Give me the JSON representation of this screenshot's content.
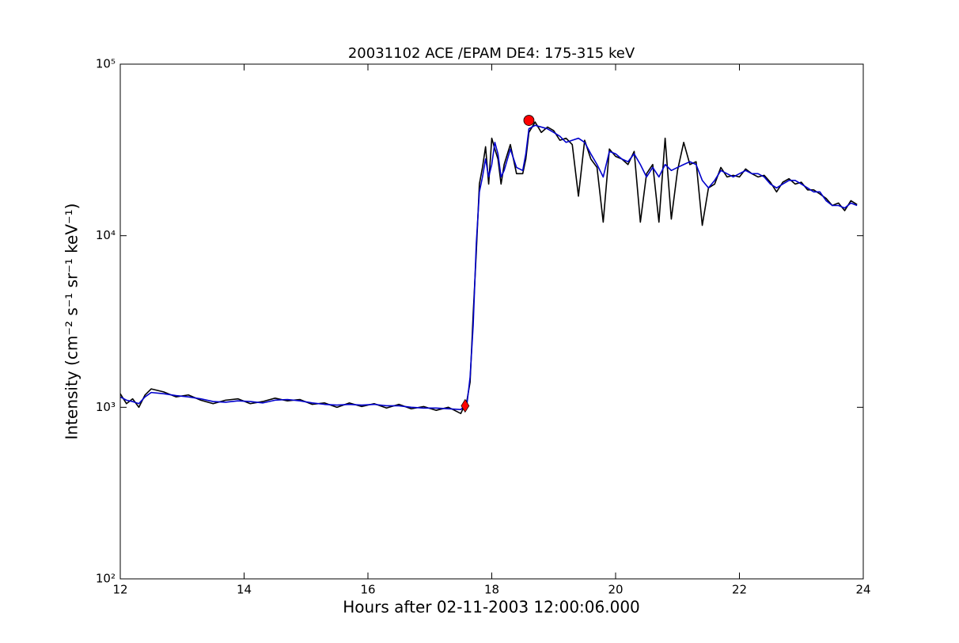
{
  "chart_data": {
    "type": "line",
    "title": "20031102 ACE /EPAM DE4: 175-315 keV",
    "xlabel": "Hours after 02-11-2003 12:00:06.000",
    "ylabel": "Intensity (cm⁻² s⁻¹ sr⁻¹ keV⁻¹)",
    "log_y": true,
    "xlim": [
      12,
      24
    ],
    "xticks": [
      12,
      14,
      16,
      18,
      20,
      22,
      24
    ],
    "ylim": [
      100,
      100000
    ],
    "yticks": [
      {
        "value": 100,
        "label": "10²"
      },
      {
        "value": 1000,
        "label": "10³"
      },
      {
        "value": 10000,
        "label": "10⁴"
      },
      {
        "value": 100000,
        "label": "10⁵"
      }
    ],
    "x": [
      12.0,
      12.1,
      12.2,
      12.3,
      12.4,
      12.5,
      12.7,
      12.9,
      13.1,
      13.3,
      13.5,
      13.7,
      13.9,
      14.1,
      14.3,
      14.5,
      14.7,
      14.9,
      15.1,
      15.3,
      15.5,
      15.7,
      15.9,
      16.1,
      16.3,
      16.5,
      16.7,
      16.9,
      17.1,
      17.3,
      17.5,
      17.6,
      17.65,
      17.7,
      17.75,
      17.8,
      17.85,
      17.9,
      17.95,
      18.0,
      18.05,
      18.1,
      18.15,
      18.2,
      18.3,
      18.4,
      18.5,
      18.55,
      18.6,
      18.7,
      18.8,
      18.9,
      19.0,
      19.1,
      19.2,
      19.3,
      19.4,
      19.5,
      19.6,
      19.7,
      19.8,
      19.9,
      20.0,
      20.1,
      20.2,
      20.3,
      20.4,
      20.5,
      20.6,
      20.7,
      20.8,
      20.9,
      21.0,
      21.1,
      21.2,
      21.3,
      21.4,
      21.5,
      21.6,
      21.7,
      21.8,
      21.9,
      22.0,
      22.1,
      22.2,
      22.3,
      22.4,
      22.5,
      22.6,
      22.7,
      22.8,
      22.9,
      23.0,
      23.1,
      23.2,
      23.3,
      23.4,
      23.5,
      23.6,
      23.7,
      23.8,
      23.9
    ],
    "series": [
      {
        "color": "#000000",
        "values": [
          1200,
          1050,
          1120,
          1000,
          1180,
          1280,
          1230,
          1150,
          1180,
          1100,
          1050,
          1100,
          1120,
          1050,
          1080,
          1130,
          1090,
          1110,
          1040,
          1060,
          1000,
          1060,
          1010,
          1050,
          990,
          1040,
          980,
          1010,
          960,
          1000,
          920,
          1100,
          1400,
          3500,
          8000,
          20000,
          25000,
          33000,
          20000,
          37000,
          32000,
          28000,
          20000,
          26000,
          34000,
          23000,
          23000,
          28000,
          40000,
          46000,
          40000,
          43000,
          41000,
          36000,
          37000,
          34000,
          17000,
          36000,
          28000,
          25000,
          12000,
          32000,
          29000,
          28000,
          26000,
          31000,
          12000,
          23000,
          26000,
          12000,
          37000,
          12500,
          24000,
          35000,
          26000,
          27000,
          11500,
          19000,
          20000,
          25000,
          22000,
          22500,
          22000,
          24500,
          23000,
          22000,
          22500,
          20500,
          18000,
          20500,
          21500,
          20000,
          20500,
          18500,
          18500,
          17500,
          16500,
          15000,
          15500,
          14000,
          16000,
          15200
        ]
      },
      {
        "color": "#0000cc",
        "values": [
          1150,
          1100,
          1080,
          1050,
          1150,
          1220,
          1200,
          1170,
          1150,
          1120,
          1080,
          1070,
          1090,
          1080,
          1060,
          1100,
          1110,
          1090,
          1060,
          1040,
          1030,
          1040,
          1030,
          1040,
          1020,
          1020,
          1000,
          990,
          990,
          980,
          970,
          1050,
          1500,
          3000,
          9000,
          18000,
          22000,
          28000,
          22000,
          26000,
          35000,
          30000,
          22000,
          24000,
          32000,
          25000,
          24000,
          30000,
          42000,
          44000,
          43000,
          42000,
          40000,
          38000,
          35000,
          36000,
          37000,
          35000,
          30000,
          26000,
          22000,
          31000,
          30000,
          28000,
          27000,
          30000,
          26000,
          22000,
          25000,
          22000,
          26000,
          24000,
          25000,
          26000,
          27000,
          26000,
          21000,
          19000,
          21000,
          24000,
          23000,
          22000,
          23000,
          24000,
          23000,
          23000,
          22000,
          20000,
          19000,
          20000,
          21000,
          21000,
          20000,
          19000,
          18000,
          18000,
          16000,
          15000,
          15000,
          14500,
          15500,
          15000
        ]
      }
    ],
    "points": [
      {
        "x": 17.57,
        "y": 1020,
        "marker": "diamond",
        "color": "#ff0000"
      },
      {
        "x": 18.6,
        "y": 47000,
        "marker": "circle",
        "color": "#ff0000"
      }
    ]
  }
}
